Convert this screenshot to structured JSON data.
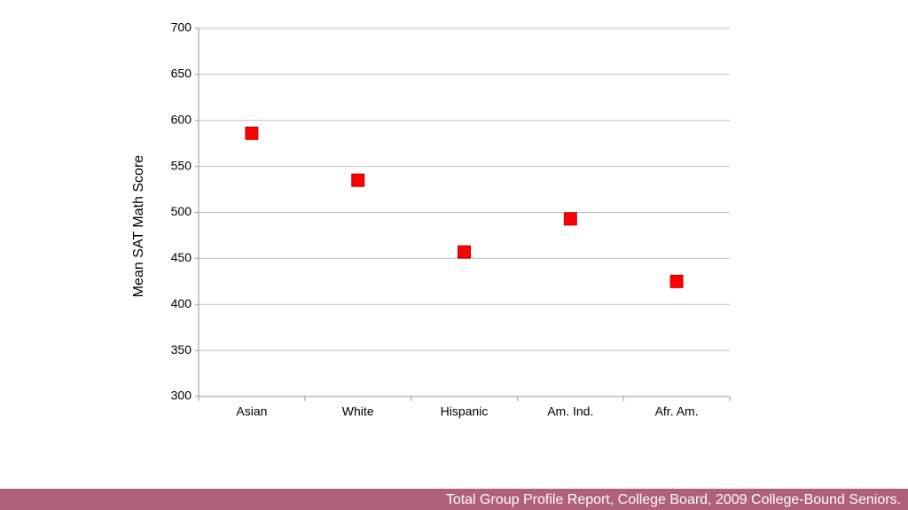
{
  "chart_data": {
    "type": "scatter",
    "y_label": "Mean SAT Math Score",
    "categories": [
      "Asian",
      "White",
      "Hispanic",
      "Am. Ind.",
      "Afr. Am."
    ],
    "values": [
      586,
      535,
      457,
      493,
      425
    ],
    "color": "#ff0000",
    "marker": "square",
    "ylim": [
      300,
      700
    ],
    "yticks": [
      300,
      350,
      400,
      450,
      500,
      550,
      600,
      650,
      700
    ],
    "grid": true,
    "source": "Total Group Profile Report, College Board, 2009 College-Bound Seniors."
  }
}
